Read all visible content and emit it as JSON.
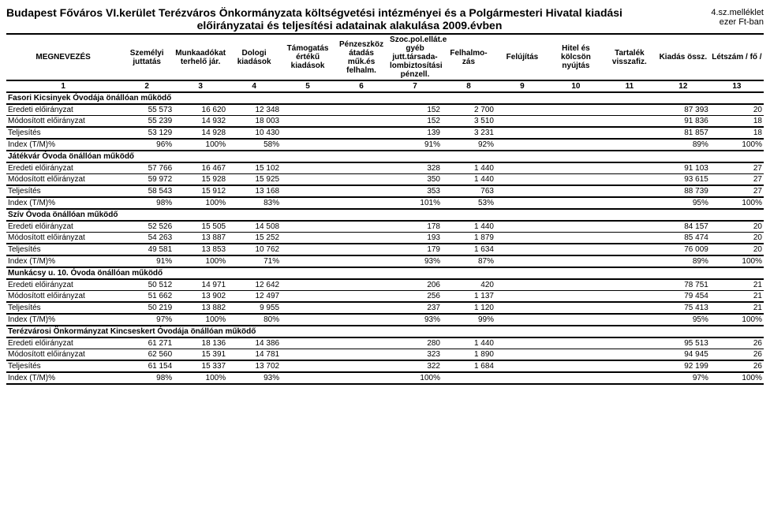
{
  "header": {
    "title_line1": "Budapest Főváros VI.kerület Terézváros Önkormányzata költségvetési intézményei és a Polgármesteri Hivatal  kiadási",
    "title_line2": "előirányzatai és teljesítési adatainak alakulása  2009.évben",
    "annex_line1": "4.sz.melléklet",
    "annex_line2": "ezer Ft-ban"
  },
  "columns": [
    "MEGNEVEZÉS",
    "Személyi juttatás",
    "Munkaadókat terhelő jár.",
    "Dologi kiadások",
    "Támogatás értékű kiadások",
    "Pénzeszköz átadás műk.és felhalm.",
    "Szoc.pol.ellát.e gyéb jutt.társada- lombiztosítási pénzell.",
    "Felhalmo- zás",
    "Felújítás",
    "Hitel és kölcsön nyújtás",
    "Tartalék visszafiz.",
    "Kiadás össz.",
    "Létszám / fő /"
  ],
  "nums": [
    "1",
    "2",
    "3",
    "4",
    "5",
    "6",
    "7",
    "8",
    "9",
    "10",
    "11",
    "12",
    "13"
  ],
  "rowlabels": {
    "ee": "Eredeti előirányzat",
    "me": "Módosított előirányzat",
    "te": "Teljesítés",
    "ix": "Index (T/M)%"
  },
  "sections": [
    {
      "title": "Fasori Kicsinyek Óvodája önállóan működő",
      "rows": {
        "ee": [
          "55 573",
          "16 620",
          "12 348",
          "",
          "",
          "152",
          "2 700",
          "",
          "",
          "",
          "87 393",
          "20"
        ],
        "me": [
          "55 239",
          "14 932",
          "18 003",
          "",
          "",
          "152",
          "3 510",
          "",
          "",
          "",
          "91 836",
          "18"
        ],
        "te": [
          "53 129",
          "14 928",
          "10 430",
          "",
          "",
          "139",
          "3 231",
          "",
          "",
          "",
          "81 857",
          "18"
        ],
        "ix": [
          "96%",
          "100%",
          "58%",
          "",
          "",
          "91%",
          "92%",
          "",
          "",
          "",
          "89%",
          "100%"
        ]
      }
    },
    {
      "title": "Játékvár Óvoda önállóan működő",
      "rows": {
        "ee": [
          "57 766",
          "16 467",
          "15 102",
          "",
          "",
          "328",
          "1 440",
          "",
          "",
          "",
          "91 103",
          "27"
        ],
        "me": [
          "59 972",
          "15 928",
          "15 925",
          "",
          "",
          "350",
          "1 440",
          "",
          "",
          "",
          "93 615",
          "27"
        ],
        "te": [
          "58 543",
          "15 912",
          "13 168",
          "",
          "",
          "353",
          "763",
          "",
          "",
          "",
          "88 739",
          "27"
        ],
        "ix": [
          "98%",
          "100%",
          "83%",
          "",
          "",
          "101%",
          "53%",
          "",
          "",
          "",
          "95%",
          "100%"
        ]
      }
    },
    {
      "title": "Szív Óvoda önállóan működő",
      "rows": {
        "ee": [
          "52 526",
          "15 505",
          "14 508",
          "",
          "",
          "178",
          "1 440",
          "",
          "",
          "",
          "84 157",
          "20"
        ],
        "me": [
          "54 263",
          "13 887",
          "15 252",
          "",
          "",
          "193",
          "1 879",
          "",
          "",
          "",
          "85 474",
          "20"
        ],
        "te": [
          "49 581",
          "13 853",
          "10 762",
          "",
          "",
          "179",
          "1 634",
          "",
          "",
          "",
          "76 009",
          "20"
        ],
        "ix": [
          "91%",
          "100%",
          "71%",
          "",
          "",
          "93%",
          "87%",
          "",
          "",
          "",
          "89%",
          "100%"
        ]
      }
    },
    {
      "title": "Munkácsy u. 10. Óvoda önállóan működő",
      "rows": {
        "ee": [
          "50 512",
          "14 971",
          "12 642",
          "",
          "",
          "206",
          "420",
          "",
          "",
          "",
          "78 751",
          "21"
        ],
        "me": [
          "51 662",
          "13 902",
          "12 497",
          "",
          "",
          "256",
          "1 137",
          "",
          "",
          "",
          "79 454",
          "21"
        ],
        "te": [
          "50 219",
          "13 882",
          "9 955",
          "",
          "",
          "237",
          "1 120",
          "",
          "",
          "",
          "75 413",
          "21"
        ],
        "ix": [
          "97%",
          "100%",
          "80%",
          "",
          "",
          "93%",
          "99%",
          "",
          "",
          "",
          "95%",
          "100%"
        ]
      }
    },
    {
      "title": "Terézvárosi Önkormányzat Kincseskert Óvodája önállóan működő",
      "rows": {
        "ee": [
          "61 271",
          "18 136",
          "14 386",
          "",
          "",
          "280",
          "1 440",
          "",
          "",
          "",
          "95 513",
          "26"
        ],
        "me": [
          "62 560",
          "15 391",
          "14 781",
          "",
          "",
          "323",
          "1 890",
          "",
          "",
          "",
          "94 945",
          "26"
        ],
        "te": [
          "61 154",
          "15 337",
          "13 702",
          "",
          "",
          "322",
          "1 684",
          "",
          "",
          "",
          "92 199",
          "26"
        ],
        "ix": [
          "98%",
          "100%",
          "93%",
          "",
          "",
          "100%",
          "",
          "",
          "",
          "",
          "97%",
          "100%"
        ]
      }
    }
  ],
  "style": {
    "background_color": "#ffffff",
    "text_color": "#000000",
    "border_color": "#000000",
    "header_fontsize": 14,
    "body_fontsize": 10,
    "font_family": "Arial"
  }
}
